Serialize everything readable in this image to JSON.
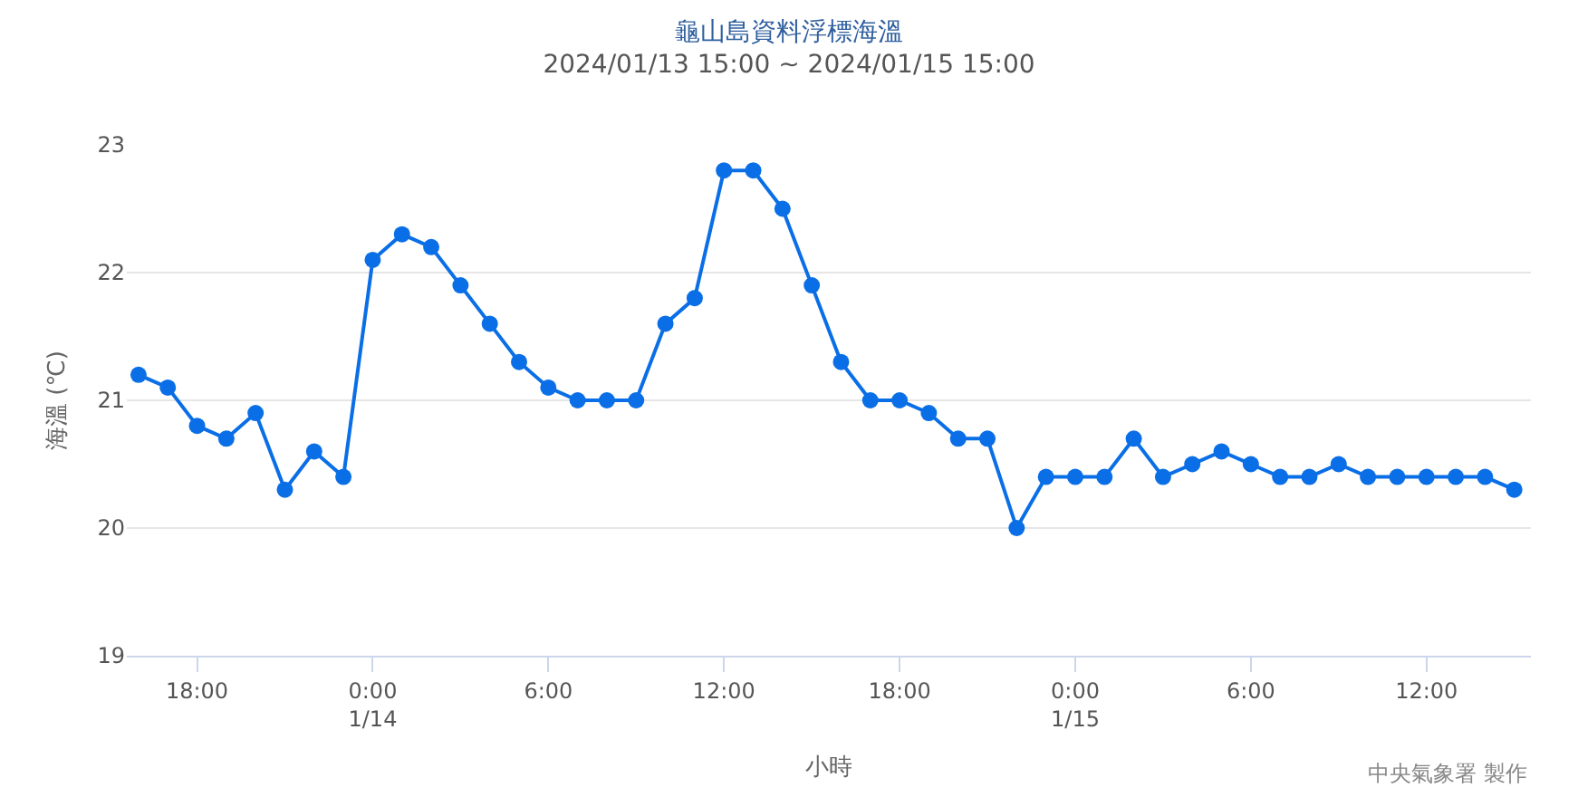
{
  "chart_data": {
    "type": "line",
    "title": "龜山島資料浮標海溫",
    "subtitle": "2024/01/13 15:00 ~ 2024/01/15 15:00",
    "xlabel": "小時",
    "ylabel": "海溫 (℃)",
    "annotations": [
      "中央氣象署 製作"
    ],
    "x": [
      "2024-01-13T16:00",
      "2024-01-13T17:00",
      "2024-01-13T18:00",
      "2024-01-13T19:00",
      "2024-01-13T20:00",
      "2024-01-13T21:00",
      "2024-01-13T22:00",
      "2024-01-13T23:00",
      "2024-01-14T00:00",
      "2024-01-14T01:00",
      "2024-01-14T02:00",
      "2024-01-14T03:00",
      "2024-01-14T04:00",
      "2024-01-14T05:00",
      "2024-01-14T06:00",
      "2024-01-14T07:00",
      "2024-01-14T08:00",
      "2024-01-14T09:00",
      "2024-01-14T10:00",
      "2024-01-14T11:00",
      "2024-01-14T12:00",
      "2024-01-14T13:00",
      "2024-01-14T14:00",
      "2024-01-14T15:00",
      "2024-01-14T16:00",
      "2024-01-14T17:00",
      "2024-01-14T18:00",
      "2024-01-14T19:00",
      "2024-01-14T20:00",
      "2024-01-14T21:00",
      "2024-01-14T22:00",
      "2024-01-14T23:00",
      "2024-01-15T00:00",
      "2024-01-15T01:00",
      "2024-01-15T02:00",
      "2024-01-15T03:00",
      "2024-01-15T04:00",
      "2024-01-15T05:00",
      "2024-01-15T06:00",
      "2024-01-15T07:00",
      "2024-01-15T08:00",
      "2024-01-15T09:00",
      "2024-01-15T10:00",
      "2024-01-15T11:00",
      "2024-01-15T12:00",
      "2024-01-15T13:00",
      "2024-01-15T14:00",
      "2024-01-15T15:00"
    ],
    "series": [
      {
        "color": "#0a6fe6",
        "values": [
          21.2,
          21.1,
          20.8,
          20.7,
          20.9,
          20.3,
          20.6,
          20.4,
          22.1,
          22.3,
          22.2,
          21.9,
          21.6,
          21.3,
          21.1,
          21.0,
          21.0,
          21.0,
          21.6,
          21.8,
          22.8,
          22.8,
          22.5,
          21.9,
          21.3,
          21.0,
          21.0,
          20.9,
          20.7,
          20.7,
          20.0,
          20.4,
          20.4,
          20.4,
          20.7,
          20.4,
          20.5,
          20.6,
          20.5,
          20.4,
          20.4,
          20.5,
          20.4,
          20.4,
          20.4,
          20.4,
          20.4,
          20.3
        ]
      }
    ],
    "xlim": [
      "2024-01-13T15:36",
      "2024-01-15T15:34"
    ],
    "xticks": [
      {
        "value": "2024-01-13T18:00",
        "label": "18:00"
      },
      {
        "value": "2024-01-14T00:00",
        "label": "0:00\n1/14"
      },
      {
        "value": "2024-01-14T06:00",
        "label": "6:00"
      },
      {
        "value": "2024-01-14T12:00",
        "label": "12:00"
      },
      {
        "value": "2024-01-14T18:00",
        "label": "18:00"
      },
      {
        "value": "2024-01-15T00:00",
        "label": "0:00\n1/15"
      },
      {
        "value": "2024-01-15T06:00",
        "label": "6:00"
      },
      {
        "value": "2024-01-15T12:00",
        "label": "12:00"
      }
    ],
    "ylim": [
      19,
      23
    ],
    "yticks": [
      19,
      20,
      21,
      22,
      23
    ],
    "grid": "y",
    "marker": "circle",
    "line_style": "solid"
  }
}
